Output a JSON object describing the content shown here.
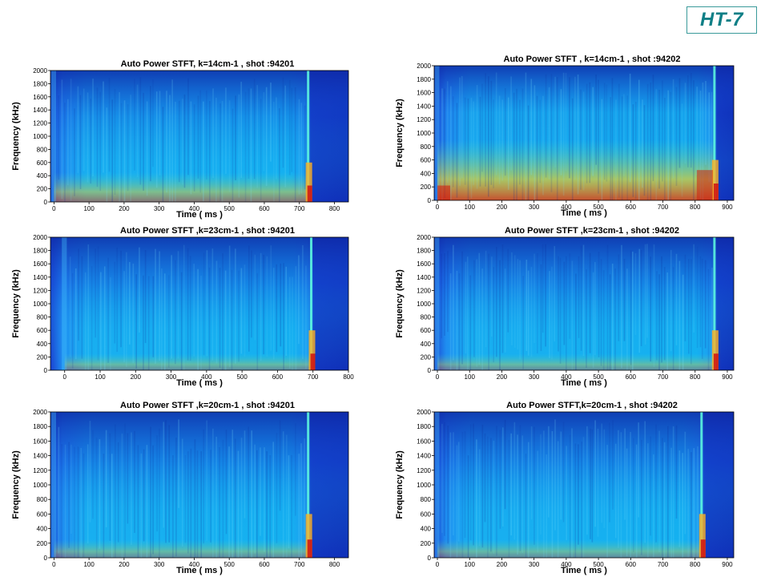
{
  "badge": {
    "label": "HT-7",
    "color": "#0e7f86"
  },
  "colors": {
    "background_low": "#1030c0",
    "mid": "#10c0f0",
    "high": "#f0d020",
    "peak": "#c01010"
  },
  "chart_data": [
    {
      "type": "heatmap",
      "title": "Auto Power STFT, k=14cm-1  ,  shot :94201",
      "xlabel": "Time  ( ms )",
      "ylabel": "Frequency  (kHz)",
      "xlim": [
        -10,
        840
      ],
      "ylim": [
        0,
        2000
      ],
      "xticks": [
        0,
        100,
        200,
        300,
        400,
        500,
        600,
        700,
        800
      ],
      "yticks": [
        0,
        200,
        400,
        600,
        800,
        1000,
        1200,
        1400,
        1600,
        1800,
        2000
      ],
      "plasma_end_ms": 725,
      "intensity": "moderate"
    },
    {
      "type": "heatmap",
      "title": "Auto Power STFT , k=14cm-1 ,  shot :94202",
      "xlabel": "Time  ( ms )",
      "ylabel": "Frequency  (kHz)",
      "xlim": [
        -10,
        920
      ],
      "ylim": [
        0,
        2000
      ],
      "xticks": [
        0,
        100,
        200,
        300,
        400,
        500,
        600,
        700,
        800,
        900
      ],
      "yticks": [
        0,
        200,
        400,
        600,
        800,
        1000,
        1200,
        1400,
        1600,
        1800,
        2000
      ],
      "plasma_end_ms": 860,
      "intensity": "strong"
    },
    {
      "type": "heatmap",
      "title": "Auto Power STFT  ,k=23cm-1  ,  shot :94201",
      "xlabel": "Time  ( ms )",
      "ylabel": "Frequency  (kHz)",
      "xlim": [
        -40,
        800
      ],
      "ylim": [
        0,
        2000
      ],
      "xticks": [
        0,
        100,
        200,
        300,
        400,
        500,
        600,
        700,
        800
      ],
      "yticks": [
        0,
        200,
        400,
        600,
        800,
        1000,
        1200,
        1400,
        1600,
        1800,
        2000
      ],
      "plasma_end_ms": 695,
      "intensity": "weak"
    },
    {
      "type": "heatmap",
      "title": "Auto Power STFT ,k=23cm-1  ,  shot :94202",
      "xlabel": "Time  ( ms )",
      "ylabel": "Frequency  (kHz)",
      "xlim": [
        -10,
        920
      ],
      "ylim": [
        0,
        2000
      ],
      "xticks": [
        0,
        100,
        200,
        300,
        400,
        500,
        600,
        700,
        800,
        900
      ],
      "yticks": [
        0,
        200,
        400,
        600,
        800,
        1000,
        1200,
        1400,
        1600,
        1800,
        2000
      ],
      "plasma_end_ms": 860,
      "intensity": "weak"
    },
    {
      "type": "heatmap",
      "title": "Auto Power STFT ,k=20cm-1  ,  shot :94201",
      "xlabel": "Time  ( ms )",
      "ylabel": "Frequency  (kHz)",
      "xlim": [
        -10,
        840
      ],
      "ylim": [
        0,
        2000
      ],
      "xticks": [
        0,
        100,
        200,
        300,
        400,
        500,
        600,
        700,
        800
      ],
      "yticks": [
        0,
        200,
        400,
        600,
        800,
        1000,
        1200,
        1400,
        1600,
        1800,
        2000
      ],
      "plasma_end_ms": 725,
      "intensity": "weak"
    },
    {
      "type": "heatmap",
      "title": "Auto Power STFT,k=20cm-1  ,  shot :94202",
      "xlabel": "Time  ( ms )",
      "ylabel": "Frequency  (kHz)",
      "xlim": [
        -10,
        920
      ],
      "ylim": [
        0,
        2000
      ],
      "xticks": [
        0,
        100,
        200,
        300,
        400,
        500,
        600,
        700,
        800,
        900
      ],
      "yticks": [
        0,
        200,
        400,
        600,
        800,
        1000,
        1200,
        1400,
        1600,
        1800,
        2000
      ],
      "plasma_end_ms": 820,
      "intensity": "weak"
    }
  ]
}
